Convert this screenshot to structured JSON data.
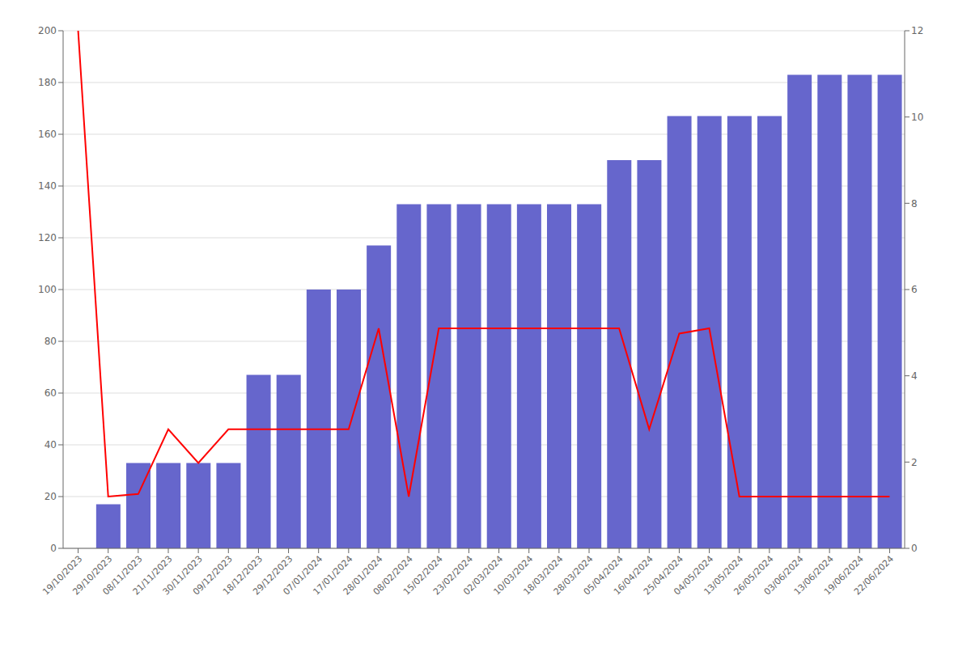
{
  "chart_data": {
    "type": "bar",
    "categories": [
      "19/10/2023",
      "29/10/2023",
      "08/11/2023",
      "21/11/2023",
      "30/11/2023",
      "09/12/2023",
      "18/12/2023",
      "29/12/2023",
      "07/01/2024",
      "17/01/2024",
      "28/01/2024",
      "08/02/2024",
      "15/02/2024",
      "23/02/2024",
      "02/03/2024",
      "10/03/2024",
      "18/03/2024",
      "28/03/2024",
      "05/04/2024",
      "16/04/2024",
      "25/04/2024",
      "04/05/2024",
      "13/05/2024",
      "26/05/2024",
      "03/06/2024",
      "13/06/2024",
      "19/06/2024",
      "22/06/2024"
    ],
    "series": [
      {
        "type": "bar",
        "color": "#6666cc",
        "values": [
          0,
          17,
          33,
          33,
          33,
          33,
          67,
          67,
          100,
          100,
          117,
          133,
          133,
          133,
          133,
          133,
          133,
          133,
          150,
          150,
          167,
          167,
          167,
          167,
          183,
          183,
          183,
          183
        ]
      },
      {
        "type": "line",
        "color": "#ff0000",
        "values": [
          200,
          20,
          21,
          46,
          33,
          46,
          46,
          46,
          46,
          46,
          85,
          20,
          85,
          85,
          85,
          85,
          85,
          85,
          85,
          46,
          83,
          85,
          20,
          20,
          20,
          20,
          20,
          20
        ]
      }
    ],
    "ylim": [
      0,
      200
    ],
    "yticks": [
      0,
      20,
      40,
      60,
      80,
      100,
      120,
      140,
      160,
      180,
      200
    ],
    "y2lim": [
      0,
      12
    ],
    "y2ticks": [
      0,
      2,
      4,
      6,
      8,
      10,
      12
    ],
    "grid": true
  }
}
